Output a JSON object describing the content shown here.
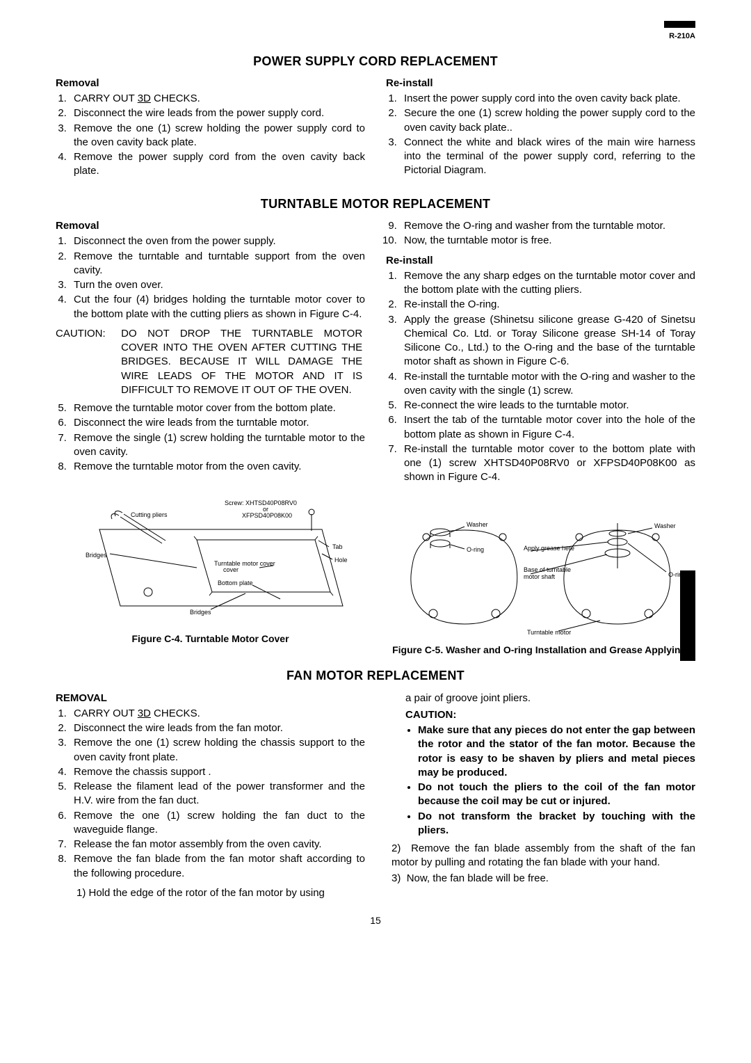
{
  "meta": {
    "model": "R-210A",
    "page_number": "15"
  },
  "sections": {
    "power": {
      "title": "POWER SUPPLY CORD REPLACEMENT",
      "removal_head": "Removal",
      "removal_items": [
        "CARRY OUT <u>3D</u> CHECKS.",
        "Disconnect the wire leads from the power supply cord.",
        "Remove the one (1) screw holding the power supply cord to the oven cavity back plate.",
        "Remove the power supply cord from the oven cavity back plate."
      ],
      "reinstall_head": "Re-install",
      "reinstall_items": [
        "Insert the power supply cord into the oven cavity back plate.",
        "Secure the one (1) screw holding the power supply cord to the oven cavity back plate..",
        "Connect the white and black wires of the main wire harness into the terminal of the power supply cord, referring to the Pictorial Diagram."
      ]
    },
    "turntable": {
      "title": "TURNTABLE MOTOR REPLACEMENT",
      "removal_head": "Removal",
      "removal_items_a": [
        "Disconnect the oven from the power supply.",
        "Remove the turntable and turntable support from the oven cavity.",
        "Turn the oven over.",
        "Cut the four (4) bridges holding the turntable motor cover to the bottom plate with the cutting pliers as shown in Figure C-4."
      ],
      "caution_label": "CAUTION:",
      "caution_text": "DO NOT DROP THE TURNTABLE MOTOR COVER INTO THE OVEN AFTER CUTTING THE BRIDGES. BECAUSE IT WILL DAMAGE THE WIRE LEADS OF THE MOTOR AND IT IS DIFFICULT TO REMOVE IT OUT OF THE OVEN.",
      "removal_items_b": [
        "Remove the turntable motor cover from the bottom plate.",
        "Disconnect the wire leads from the turntable motor.",
        "Remove the single (1) screw holding the turntable motor to the oven cavity.",
        "Remove the turntable motor from the oven cavity."
      ],
      "right_cont": [
        "Remove the O-ring and washer from the turntable motor.",
        "Now, the turntable motor is free."
      ],
      "reinstall_head": "Re-install",
      "reinstall_items": [
        "Remove the any sharp edges on the turntable motor cover and the bottom plate with the cutting pliers.",
        "Re-install the O-ring.",
        "Apply the grease (Shinetsu  silicone grease G-420 of Sinetsu Chemical Co. Ltd. or Toray Silicone grease SH-14 of Toray Silicone Co., Ltd.) to the O-ring and the base of the turntable motor shaft as shown in Figure C-6.",
        "Re-install the turntable motor with the O-ring and washer  to the oven cavity with the single (1) screw.",
        "Re-connect the wire leads to the turntable motor.",
        "Insert the tab of the turntable motor cover into the hole of the bottom plate as shown in Figure C-4.",
        "Re-install the turntable motor cover to the bottom plate with one (1) screw XHTSD40P08RV0 or XFPSD40P08K00 as shown in Figure C-4."
      ],
      "fig_c4": {
        "caption": "Figure C-4. Turntable Motor Cover",
        "labels": {
          "cutting_pliers": "Cutting pliers",
          "bridges": "Bridges",
          "screw": "Screw: XHTSD40P08RV0",
          "or": "or",
          "screw2": "XFPSD40P08K00",
          "tab": "Tab",
          "hole": "Hole",
          "motor_cover": "Turntable motor cover",
          "bottom_plate": "Bottom plate"
        }
      },
      "fig_c5": {
        "caption": "Figure C-5.  Washer and O-ring Installation and Grease Applying.",
        "labels": {
          "washer": "Washer",
          "oring": "O-ring",
          "apply": "Apply grease here",
          "base": "Base of turntable motor shaft",
          "turntable_motor": "Turntable motor"
        }
      }
    },
    "fan": {
      "title": "FAN MOTOR REPLACEMENT",
      "removal_head": "REMOVAL",
      "removal_items": [
        "CARRY OUT <u>3D</u> CHECKS.",
        "Disconnect the wire leads from the fan motor.",
        "Remove the one (1) screw holding the chassis support to the oven cavity front plate.",
        "Remove the chassis support .",
        "Release the filament lead of the power transformer and the H.V. wire from the fan duct.",
        "Remove the one (1) screw holding the fan duct to the waveguide flange.",
        "Release the fan motor assembly from the oven cavity.",
        "Remove the fan blade from the fan motor shaft according to the following procedure."
      ],
      "sub1": "1) Hold the edge of the rotor of the fan motor by using",
      "right_top": "a pair of groove joint pliers.",
      "caution_head": "CAUTION:",
      "caution_bullets": [
        "Make sure that any pieces do not enter the gap between the rotor and the stator of the fan motor. Because the rotor is easy to be shaven by pliers and  metal pieces may be produced.",
        "Do not touch the pliers to the coil of the fan motor because the coil may be cut or injured.",
        "Do not transform the bracket by touching with the pliers."
      ],
      "sub2": "Remove the fan blade assembly from the shaft of the fan motor by pulling and rotating the fan blade with your hand.",
      "sub3": "Now, the fan blade will be free."
    }
  }
}
